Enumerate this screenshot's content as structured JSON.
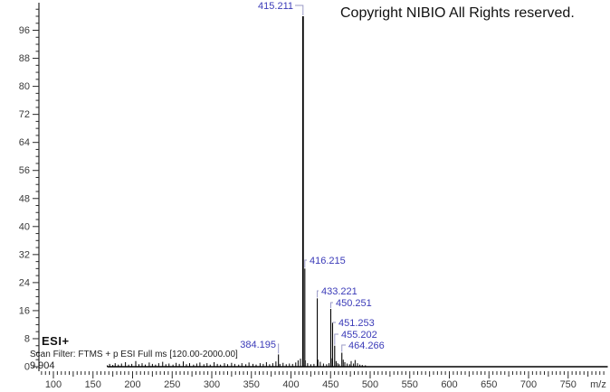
{
  "window": {
    "background": "#ffffff"
  },
  "colors": {
    "peak": "#000000",
    "axis": "#2a2a2a",
    "tick_label": "#3a3a3a",
    "peak_label": "#3a3ab8",
    "leader": "#9a9ac6",
    "copyright_text": "#111111"
  },
  "header": {
    "copyright": "Copyright NIBIO All Rights reserved."
  },
  "annotations": {
    "ionization_mode": "ESI+",
    "scan_filter": "Scan Filter: FTMS + p ESI Full ms [120.00-2000.00]",
    "retention_time": "9.904"
  },
  "chart_data": {
    "type": "bar",
    "title": "",
    "xlabel": "m/z",
    "ylabel": "",
    "x_range": [
      85,
      800
    ],
    "y_range": [
      0,
      104
    ],
    "x_tick_labels": [
      100,
      150,
      200,
      250,
      300,
      350,
      400,
      450,
      500,
      550,
      600,
      650,
      700,
      750
    ],
    "y_tick_labels": [
      0,
      8,
      16,
      24,
      32,
      40,
      48,
      56,
      64,
      72,
      80,
      88,
      96
    ],
    "x_minor_step": 5,
    "y_minor_step": 2,
    "grid": "off",
    "baseline_mz_range": [
      168,
      800
    ],
    "labeled_peaks": [
      {
        "mz": 384.195,
        "intensity": 3.5,
        "label": "384.195"
      },
      {
        "mz": 415.211,
        "intensity": 100,
        "label": "415.211"
      },
      {
        "mz": 416.215,
        "intensity": 28,
        "label": "416.215"
      },
      {
        "mz": 433.221,
        "intensity": 19.5,
        "label": "433.221"
      },
      {
        "mz": 450.251,
        "intensity": 16.5,
        "label": "450.251"
      },
      {
        "mz": 451.253,
        "intensity": 12.5,
        "label": "451.253"
      },
      {
        "mz": 455.202,
        "intensity": 6,
        "label": "455.202"
      },
      {
        "mz": 464.266,
        "intensity": 4,
        "label": "464.266"
      }
    ],
    "minor_peaks": [
      [
        168,
        0.4
      ],
      [
        171,
        0.8
      ],
      [
        175,
        0.5
      ],
      [
        178,
        1.0
      ],
      [
        182,
        0.6
      ],
      [
        186,
        0.9
      ],
      [
        191,
        1.3
      ],
      [
        195,
        0.6
      ],
      [
        199,
        0.8
      ],
      [
        204,
        1.6
      ],
      [
        208,
        0.7
      ],
      [
        212,
        1.0
      ],
      [
        216,
        0.6
      ],
      [
        221,
        1.2
      ],
      [
        225,
        0.8
      ],
      [
        229,
        0.6
      ],
      [
        233,
        1.0
      ],
      [
        238,
        1.4
      ],
      [
        242,
        0.7
      ],
      [
        246,
        0.9
      ],
      [
        251,
        0.6
      ],
      [
        255,
        1.1
      ],
      [
        259,
        0.8
      ],
      [
        264,
        1.5
      ],
      [
        268,
        0.7
      ],
      [
        272,
        1.0
      ],
      [
        277,
        0.6
      ],
      [
        281,
        0.9
      ],
      [
        285,
        1.2
      ],
      [
        290,
        0.7
      ],
      [
        294,
        1.0
      ],
      [
        298,
        0.6
      ],
      [
        303,
        1.3
      ],
      [
        307,
        0.8
      ],
      [
        311,
        0.6
      ],
      [
        316,
        1.0
      ],
      [
        320,
        0.7
      ],
      [
        325,
        1.1
      ],
      [
        329,
        0.8
      ],
      [
        334,
        0.6
      ],
      [
        338,
        1.0
      ],
      [
        343,
        0.7
      ],
      [
        347,
        1.2
      ],
      [
        352,
        0.8
      ],
      [
        356,
        0.6
      ],
      [
        361,
        1.0
      ],
      [
        365,
        0.8
      ],
      [
        369,
        1.3
      ],
      [
        373,
        0.7
      ],
      [
        377,
        1.0
      ],
      [
        381,
        1.5
      ],
      [
        386,
        0.8
      ],
      [
        390,
        1.1
      ],
      [
        394,
        0.7
      ],
      [
        398,
        0.9
      ],
      [
        402,
        0.8
      ],
      [
        406,
        1.2
      ],
      [
        409,
        1.8
      ],
      [
        412,
        2.3
      ],
      [
        418,
        1.8
      ],
      [
        421,
        1.0
      ],
      [
        425,
        0.7
      ],
      [
        429,
        0.8
      ],
      [
        434,
        2.0
      ],
      [
        437,
        1.4
      ],
      [
        441,
        0.9
      ],
      [
        445,
        0.7
      ],
      [
        448,
        1.0
      ],
      [
        452,
        2.4
      ],
      [
        457,
        1.6
      ],
      [
        459,
        1.0
      ],
      [
        461,
        0.7
      ],
      [
        466,
        2.0
      ],
      [
        468,
        1.3
      ],
      [
        471,
        0.9
      ],
      [
        474,
        0.7
      ],
      [
        476,
        1.6
      ],
      [
        479,
        0.9
      ],
      [
        481,
        1.9
      ],
      [
        484,
        1.0
      ],
      [
        487,
        0.6
      ],
      [
        490,
        0.5
      ],
      [
        494,
        0.4
      ]
    ]
  }
}
